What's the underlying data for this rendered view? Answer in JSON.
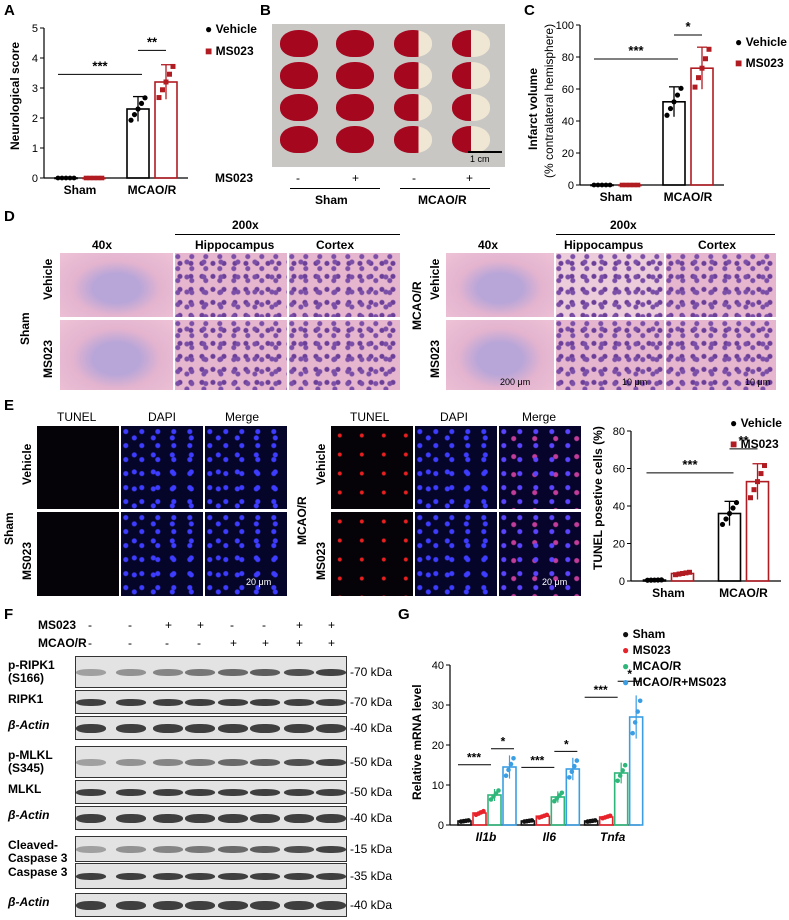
{
  "panels": {
    "A": {
      "letter": "A",
      "ylabel": "Neurological score",
      "yticks": [
        "0",
        "1",
        "2",
        "3",
        "4",
        "5"
      ],
      "xcats": [
        "Sham",
        "MCAO/R"
      ],
      "sig": [
        "***",
        "**"
      ],
      "legend": [
        "Vehicle",
        "MS023"
      ]
    },
    "B": {
      "letter": "B",
      "row_label": "MS023",
      "signs": [
        "-",
        "+",
        "-",
        "+"
      ],
      "groups": [
        "Sham",
        "MCAO/R"
      ],
      "scale": "1 cm"
    },
    "C": {
      "letter": "C",
      "ylabel1": "Infarct volume",
      "ylabel2": "(% contralateral hemisphere)",
      "yticks": [
        "0",
        "20",
        "40",
        "60",
        "80",
        "100"
      ],
      "xcats": [
        "Sham",
        "MCAO/R"
      ],
      "sig": [
        "***",
        "*"
      ],
      "legend": [
        "Vehicle",
        "MS023"
      ]
    },
    "D": {
      "letter": "D",
      "mag_low": "40x",
      "mag_high": "200x",
      "hip": "Hippocampus",
      "cortex": "Cortex",
      "left_group": "Sham",
      "right_group": "MCAO/R",
      "rows": [
        "Vehicle",
        "MS023"
      ],
      "scales": [
        "200 μm",
        "10 μm",
        "10 μm"
      ]
    },
    "E": {
      "letter": "E",
      "cols": [
        "TUNEL",
        "DAPI",
        "Merge"
      ],
      "left_group": "Sham",
      "right_group": "MCAO/R",
      "rows": [
        "Vehicle",
        "MS023"
      ],
      "scale": "20 μm",
      "ylabel": "TUNEL posetive cells (%)",
      "yticks": [
        "0",
        "20",
        "40",
        "60",
        "80"
      ],
      "xcats": [
        "Sham",
        "MCAO/R"
      ],
      "sig": [
        "***",
        "**"
      ],
      "legend": [
        "Vehicle",
        "MS023"
      ]
    },
    "F": {
      "letter": "F",
      "hdr_ms023": "MS023",
      "hdr_mcao": "MCAO/R",
      "ms023_signs": [
        "-",
        "-",
        "+",
        "+",
        "-",
        "-",
        "+",
        "+"
      ],
      "mcao_signs": [
        "-",
        "-",
        "-",
        "-",
        "+",
        "+",
        "+",
        "+"
      ],
      "blots": [
        {
          "name": "p-RIPK1",
          "name2": "(S166)",
          "kda": "70 kDa"
        },
        {
          "name": "RIPK1",
          "name2": "",
          "kda": "70 kDa"
        },
        {
          "name": "β-Actin",
          "name2": "",
          "kda": "40 kDa"
        },
        {
          "name": "p-MLKL",
          "name2": "(S345)",
          "kda": "50 kDa"
        },
        {
          "name": "MLKL",
          "name2": "",
          "kda": "50 kDa"
        },
        {
          "name": "β-Actin",
          "name2": "",
          "kda": "40 kDa"
        },
        {
          "name": "Cleaved-",
          "name2": "Caspase 3",
          "kda": "15 kDa"
        },
        {
          "name": "Caspase 3",
          "name2": "",
          "kda": "35 kDa"
        },
        {
          "name": "β-Actin",
          "name2": "",
          "kda": "40 kDa"
        }
      ]
    },
    "G": {
      "letter": "G",
      "ylabel": "Relative mRNA level",
      "yticks": [
        "0",
        "10",
        "20",
        "30",
        "40"
      ],
      "genes": [
        "Il1b",
        "Il6",
        "Tnfa"
      ],
      "sig": [
        "***",
        "*"
      ],
      "legend": [
        "Sham",
        "MS023",
        "MCAO/R",
        "MCAO/R+MS023"
      ]
    }
  },
  "colors": {
    "vehicle": "#000000",
    "ms023": "#b01c22",
    "sham": "#111111",
    "ms023_g": "#e8222a",
    "mcao_g": "#2fb67a",
    "combo_g": "#3b9ee3"
  },
  "chart_data": [
    {
      "type": "bar",
      "panel": "A",
      "categories": [
        "Sham",
        "MCAO/R"
      ],
      "series": [
        {
          "name": "Vehicle",
          "values": [
            0,
            2.3
          ]
        },
        {
          "name": "MS023",
          "values": [
            0,
            3.2
          ]
        }
      ],
      "ylabel": "Neurological score",
      "ylim": [
        0,
        5
      ]
    },
    {
      "type": "bar",
      "panel": "C",
      "categories": [
        "Sham",
        "MCAO/R"
      ],
      "series": [
        {
          "name": "Vehicle",
          "values": [
            0,
            52
          ]
        },
        {
          "name": "MS023",
          "values": [
            0,
            73
          ]
        }
      ],
      "ylabel": "Infarct volume (% contralateral hemisphere)",
      "ylim": [
        0,
        100
      ]
    },
    {
      "type": "bar",
      "panel": "E",
      "categories": [
        "Sham",
        "MCAO/R"
      ],
      "series": [
        {
          "name": "Vehicle",
          "values": [
            0.5,
            36
          ]
        },
        {
          "name": "MS023",
          "values": [
            4,
            53
          ]
        }
      ],
      "ylabel": "TUNEL posetive cells (%)",
      "ylim": [
        0,
        80
      ]
    },
    {
      "type": "bar",
      "panel": "G",
      "categories": [
        "Il1b",
        "Il6",
        "Tnfa"
      ],
      "series": [
        {
          "name": "Sham",
          "values": [
            1,
            1,
            1
          ]
        },
        {
          "name": "MS023",
          "values": [
            3,
            2.2,
            2
          ]
        },
        {
          "name": "MCAO/R",
          "values": [
            7.5,
            7,
            13
          ]
        },
        {
          "name": "MCAO/R+MS023",
          "values": [
            14.5,
            14,
            27
          ]
        }
      ],
      "ylabel": "Relative mRNA level",
      "ylim": [
        0,
        40
      ]
    }
  ]
}
